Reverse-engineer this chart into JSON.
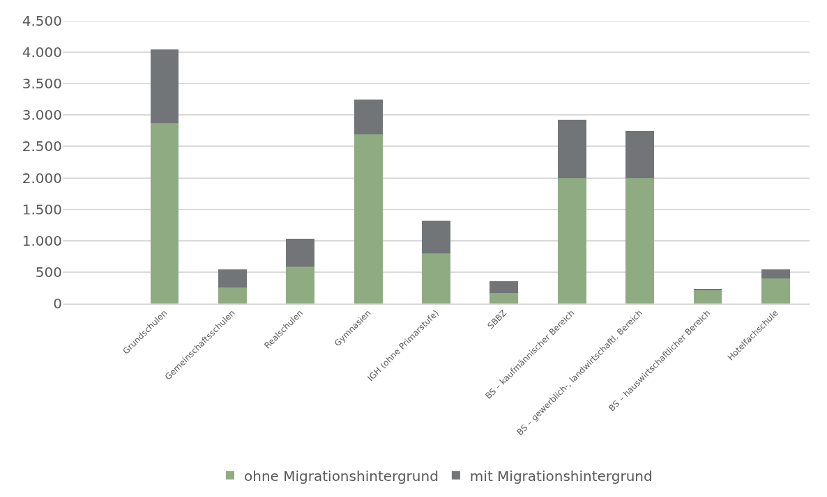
{
  "chart_data": {
    "type": "bar",
    "stacked": true,
    "categories": [
      null,
      "Grundschulen",
      "Gemeinschaftsschulen",
      "Realschulen",
      "Gymnasien",
      "IGH (ohne Primarstufe)",
      "SBBZ",
      "BS – kaufmännischer Bereich",
      "BS – gewerblich-, landwirtschaftl. Bereich",
      "BS – hauswirtschaftlicher Bereich",
      "Hotelfachschule"
    ],
    "series": [
      {
        "name": "ohne Migrationshintergrund",
        "color": "#8fab82",
        "values": [
          null,
          2870,
          260,
          590,
          2690,
          800,
          170,
          2000,
          2000,
          220,
          400
        ]
      },
      {
        "name": "mit Migrationshintergrund",
        "color": "#727577",
        "values": [
          null,
          1180,
          280,
          440,
          560,
          520,
          190,
          930,
          750,
          10,
          140
        ]
      }
    ],
    "ylim": [
      0,
      4500
    ],
    "yticks": [
      {
        "value": 0,
        "label": "0"
      },
      {
        "value": 500,
        "label": "500"
      },
      {
        "value": 1000,
        "label": "1.000"
      },
      {
        "value": 1500,
        "label": "1.500"
      },
      {
        "value": 2000,
        "label": "2.000"
      },
      {
        "value": 2500,
        "label": "2.500"
      },
      {
        "value": 3000,
        "label": "3.000"
      },
      {
        "value": 3500,
        "label": "3.500"
      },
      {
        "value": 4000,
        "label": "4.000"
      },
      {
        "value": 4500,
        "label": "4.500"
      }
    ],
    "grid": "y",
    "legend": "bottom"
  }
}
